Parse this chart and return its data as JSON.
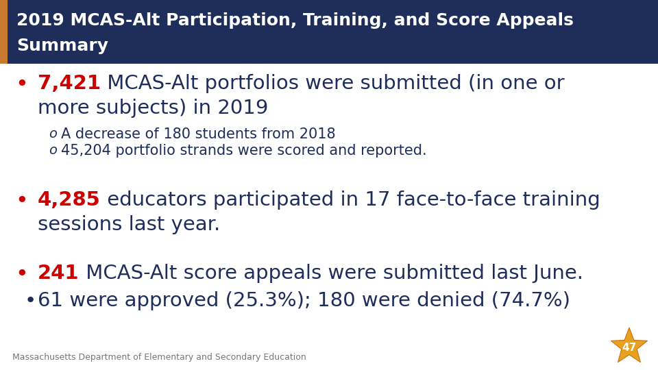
{
  "title_line1": "2019 MCAS-Alt Participation, Training, and Score Appeals",
  "title_line2": "Summary",
  "title_bg_color": "#1e2d5a",
  "title_text_color": "#ffffff",
  "title_left_bar_color": "#c87a30",
  "bg_color": "#ffffff",
  "bullet_color": "#cc0000",
  "text_color": "#1e2d5a",
  "red_color": "#cc0000",
  "footer_text": "Massachusetts Department of Elementary and Secondary Education",
  "footer_color": "#777777",
  "page_number": "47",
  "star_color": "#e8a020",
  "star_edge_color": "#c87010",
  "sub1a": "A decrease of 180 students from 2018",
  "sub1b": "45,204 portfolio strands were scored and reported.",
  "title_fontsize": 18,
  "main_fontsize": 21,
  "sub_fontsize": 15,
  "footer_fontsize": 9
}
